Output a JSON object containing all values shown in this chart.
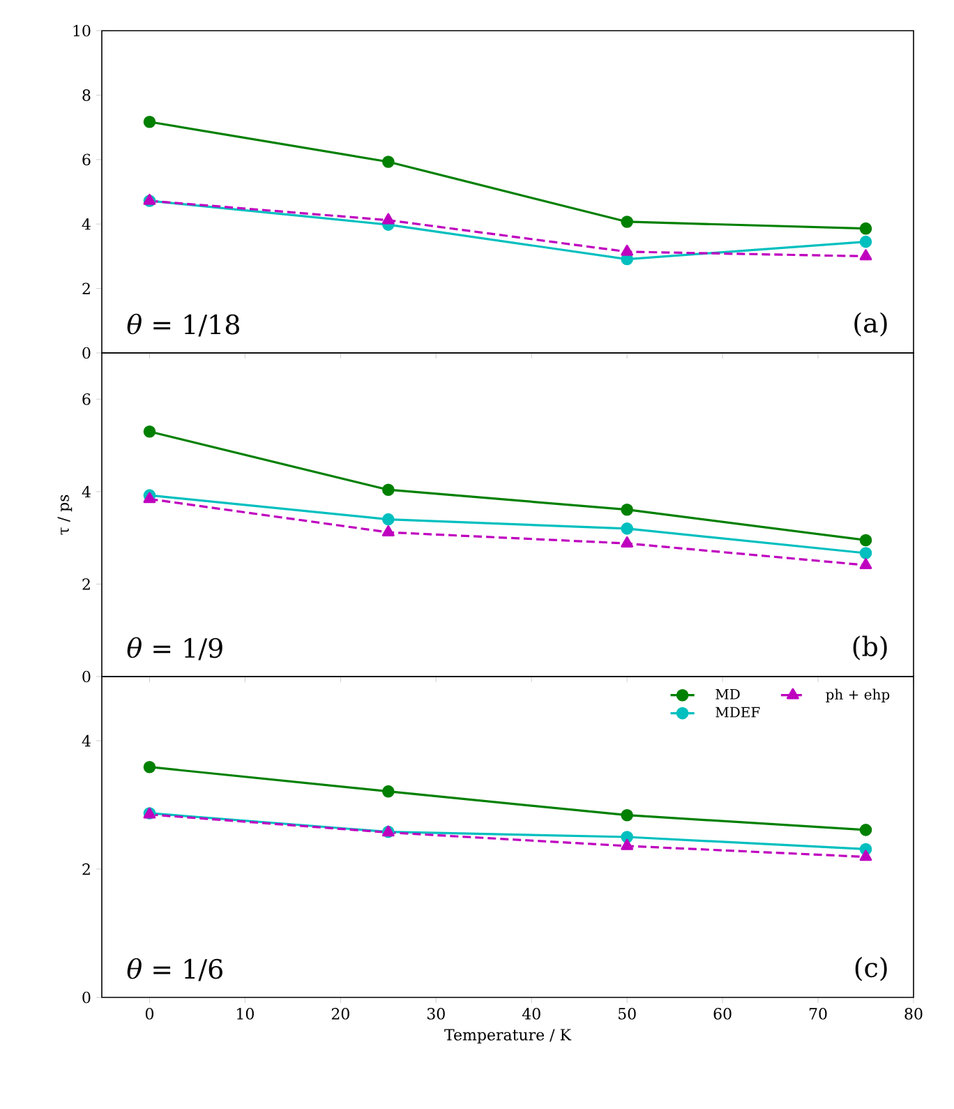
{
  "chart_data": [
    {
      "type": "line",
      "x": [
        0,
        25,
        50,
        75
      ],
      "xlim": [
        -5,
        80
      ],
      "xticks": [
        0,
        10,
        20,
        30,
        40,
        50,
        60,
        70,
        80
      ],
      "ylim": [
        0,
        10
      ],
      "yticks": [
        0,
        2,
        4,
        6,
        8,
        10
      ],
      "tick_labels": "y",
      "annotations": [
        "*θ* = 1/18",
        "(a)"
      ],
      "series": [
        {
          "color": "#008000",
          "marker": "circle",
          "line_style": "solid",
          "values": [
            7.17,
            5.93,
            4.07,
            3.86
          ]
        },
        {
          "color": "#00bfbf",
          "marker": "circle",
          "line_style": "solid",
          "values": [
            4.72,
            3.98,
            2.91,
            3.45
          ]
        },
        {
          "color": "#bf00bf",
          "marker": "triangle",
          "line_style": "dashed",
          "values": [
            4.72,
            4.12,
            3.14,
            3.0
          ]
        }
      ]
    },
    {
      "type": "line",
      "x": [
        0,
        25,
        50,
        75
      ],
      "xlim": [
        -5,
        80
      ],
      "xticks": [
        0,
        10,
        20,
        30,
        40,
        50,
        60,
        70,
        80
      ],
      "ylim": [
        0,
        7
      ],
      "yticks": [
        0,
        2,
        4,
        6
      ],
      "tick_labels": "y",
      "ylabel": "τ / ps",
      "annotations": [
        "*θ* = 1/9",
        "(b)"
      ],
      "series": [
        {
          "color": "#008000",
          "marker": "circle",
          "line_style": "solid",
          "values": [
            5.3,
            4.04,
            3.61,
            2.95
          ]
        },
        {
          "color": "#00bfbf",
          "marker": "circle",
          "line_style": "solid",
          "values": [
            3.92,
            3.4,
            3.2,
            2.67
          ]
        },
        {
          "color": "#bf00bf",
          "marker": "triangle",
          "line_style": "dashed",
          "values": [
            3.84,
            3.12,
            2.88,
            2.41
          ]
        }
      ]
    },
    {
      "type": "line",
      "x": [
        0,
        25,
        50,
        75
      ],
      "xlim": [
        -5,
        80
      ],
      "xticks": [
        0,
        10,
        20,
        30,
        40,
        50,
        60,
        70,
        80
      ],
      "ylim": [
        0,
        5
      ],
      "yticks": [
        0,
        2,
        4
      ],
      "xlabel": "Temperature / K",
      "legend": "top right",
      "annotations": [
        "*θ* = 1/6",
        "(c)"
      ],
      "series": [
        {
          "name": "MD",
          "color": "#008000",
          "marker": "circle",
          "line_style": "solid",
          "values": [
            3.59,
            3.21,
            2.84,
            2.61
          ]
        },
        {
          "name": "MDEF",
          "color": "#00bfbf",
          "marker": "circle",
          "line_style": "solid",
          "values": [
            2.87,
            2.58,
            2.5,
            2.31
          ]
        },
        {
          "name": "ph + ehp",
          "color": "#bf00bf",
          "marker": "triangle",
          "line_style": "dashed",
          "values": [
            2.85,
            2.57,
            2.36,
            2.19
          ]
        }
      ]
    }
  ]
}
